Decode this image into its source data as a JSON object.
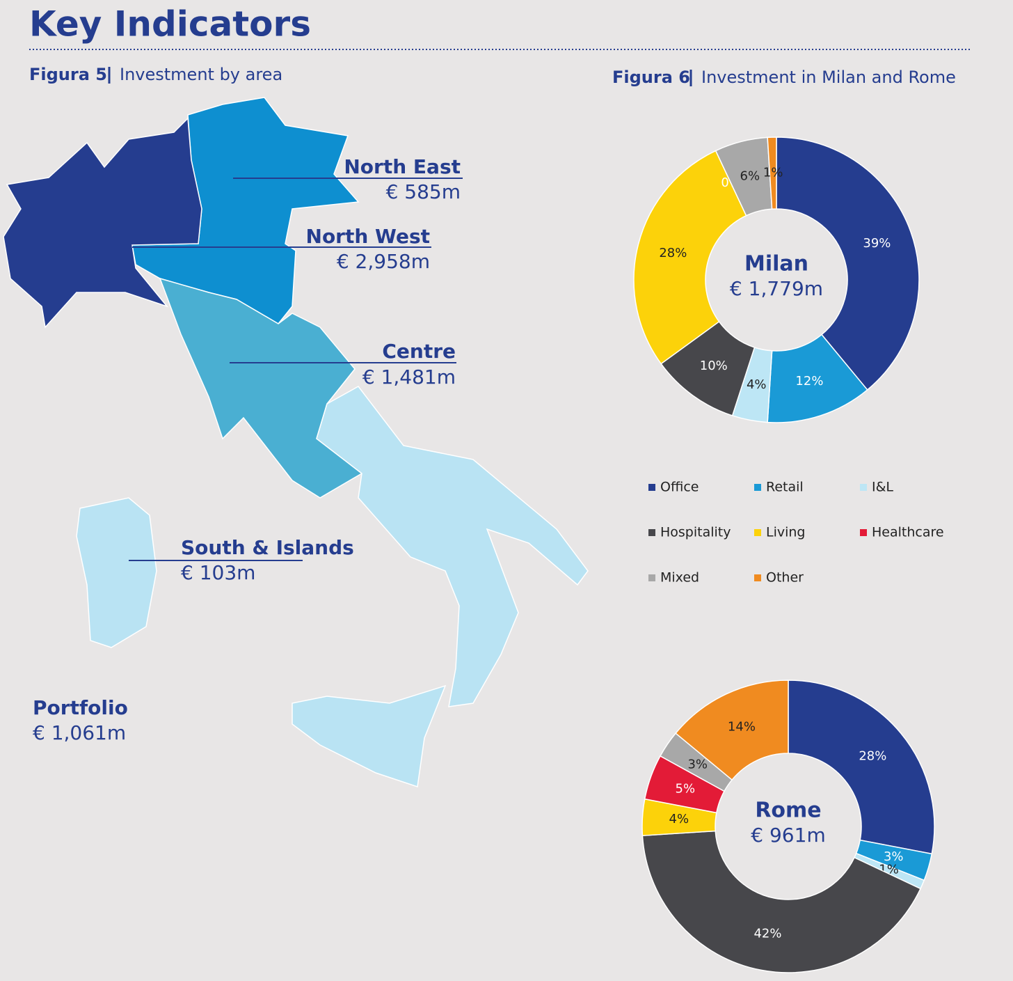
{
  "header": {
    "title": "Key Indicators"
  },
  "figure5": {
    "label": "Figura 5",
    "caption": "Investment by area",
    "areas": [
      {
        "name": "North East",
        "value": "€ 585m"
      },
      {
        "name": "North West",
        "value": "€ 2,958m"
      },
      {
        "name": "Centre",
        "value": "€ 1,481m"
      },
      {
        "name": "South & Islands",
        "value": "€ 103m"
      }
    ],
    "portfolio": {
      "name": "Portfolio",
      "value": "€ 1,061m"
    }
  },
  "figure6": {
    "label": "Figura 6",
    "caption": "Investment in Milan and Rome",
    "legend": {
      "categories": [
        "Office",
        "Retail",
        "I&L",
        "Hospitality",
        "Living",
        "Healthcare",
        "Mixed",
        "Other"
      ],
      "colors": [
        "#253d8f",
        "#1a9ad6",
        "#bde6f5",
        "#47474b",
        "#fcd20a",
        "#e31b37",
        "#a8a8a8",
        "#f08b20"
      ]
    }
  },
  "chart_data": [
    {
      "type": "donut",
      "title": "Milan",
      "subtitle": "€ 1,779m",
      "values": [
        39,
        12,
        4,
        10,
        28,
        0,
        6,
        1
      ],
      "value_labels": [
        "39%",
        "12%",
        "4%",
        "10%",
        "28%",
        "0%",
        "6%",
        "1%"
      ]
    },
    {
      "type": "donut",
      "title": "Rome",
      "subtitle": "€ 961m",
      "values": [
        28,
        3,
        1,
        42,
        4,
        5,
        3,
        14
      ],
      "value_labels": [
        "28%",
        "3%",
        "1%",
        "42%",
        "4%",
        "5%",
        "3%",
        "14%"
      ]
    }
  ]
}
